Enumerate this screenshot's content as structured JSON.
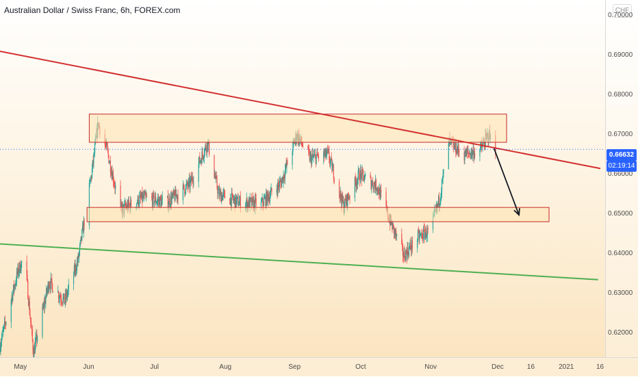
{
  "header": {
    "title": "Australian Dollar / Swiss Franc, 6h, FOREX.com",
    "currency": "CHF"
  },
  "price_axis": {
    "ticks": [
      "0.70000",
      "0.69000",
      "0.68000",
      "0.67000",
      "0.66000",
      "0.65000",
      "0.64000",
      "0.63000",
      "0.62000"
    ],
    "last_price": "0.66632",
    "countdown": "02:19:14"
  },
  "time_axis": {
    "ticks": [
      "May",
      "Jun",
      "Jul",
      "Aug",
      "Sep",
      "Oct",
      "Nov",
      "Dec",
      "16",
      "2021",
      "16"
    ]
  },
  "colors": {
    "up": "#26a69a",
    "down": "#ef5350",
    "resistance_line": "#d32f2f",
    "support_line": "#4caf50",
    "zone_fill": "#fde3b0",
    "zone_border": "#c62828",
    "price_tag": "#2962ff"
  },
  "chart_data": {
    "type": "candlestick",
    "symbol": "AUDCHF",
    "timeframe": "6h",
    "ylim": [
      0.6103,
      0.7056
    ],
    "x_labels": [
      "May",
      "Jun",
      "Jul",
      "Aug",
      "Sep",
      "Oct",
      "Nov",
      "Dec",
      "16",
      "2021",
      "16"
    ],
    "price_path": [
      {
        "date": "2020-04-22",
        "price": 0.617
      },
      {
        "date": "2020-04-30",
        "price": 0.6355
      },
      {
        "date": "2020-05-03",
        "price": 0.6395
      },
      {
        "date": "2020-05-07",
        "price": 0.615
      },
      {
        "date": "2020-05-14",
        "price": 0.633
      },
      {
        "date": "2020-05-21",
        "price": 0.628
      },
      {
        "date": "2020-05-27",
        "price": 0.6385
      },
      {
        "date": "2020-06-02",
        "price": 0.66
      },
      {
        "date": "2020-06-05",
        "price": 0.673
      },
      {
        "date": "2020-06-09",
        "price": 0.666
      },
      {
        "date": "2020-06-15",
        "price": 0.651
      },
      {
        "date": "2020-06-25",
        "price": 0.654
      },
      {
        "date": "2020-07-06",
        "price": 0.653
      },
      {
        "date": "2020-07-16",
        "price": 0.6575
      },
      {
        "date": "2020-07-24",
        "price": 0.668
      },
      {
        "date": "2020-07-29",
        "price": 0.655
      },
      {
        "date": "2020-08-07",
        "price": 0.653
      },
      {
        "date": "2020-08-17",
        "price": 0.6525
      },
      {
        "date": "2020-08-26",
        "price": 0.658
      },
      {
        "date": "2020-09-02",
        "price": 0.67
      },
      {
        "date": "2020-09-08",
        "price": 0.664
      },
      {
        "date": "2020-09-16",
        "price": 0.665
      },
      {
        "date": "2020-09-23",
        "price": 0.652
      },
      {
        "date": "2020-09-30",
        "price": 0.66
      },
      {
        "date": "2020-10-08",
        "price": 0.657
      },
      {
        "date": "2020-10-14",
        "price": 0.648
      },
      {
        "date": "2020-10-20",
        "price": 0.6395
      },
      {
        "date": "2020-10-26",
        "price": 0.644
      },
      {
        "date": "2020-11-01",
        "price": 0.646
      },
      {
        "date": "2020-11-05",
        "price": 0.654
      },
      {
        "date": "2020-11-09",
        "price": 0.668
      },
      {
        "date": "2020-11-16",
        "price": 0.665
      },
      {
        "date": "2020-11-23",
        "price": 0.666
      },
      {
        "date": "2020-11-27",
        "price": 0.67
      },
      {
        "date": "2020-11-30",
        "price": 0.6663
      }
    ],
    "last_price": 0.66632,
    "annotations": {
      "resistance_trendline": {
        "start": {
          "date": "2020-04-22",
          "price": 0.691
        },
        "end": {
          "date": "2021-01-16",
          "price": 0.6615
        }
      },
      "support_trendline": {
        "start": {
          "date": "2020-04-22",
          "price": 0.6425
        },
        "end": {
          "date": "2021-01-15",
          "price": 0.6335
        }
      },
      "upper_zone": {
        "x_start": "2020-06-01",
        "x_end": "2020-12-05",
        "y_low": 0.6681,
        "y_high": 0.6752
      },
      "lower_zone": {
        "x_start": "2020-05-31",
        "x_end": "2020-12-24",
        "y_low": 0.6481,
        "y_high": 0.6517
      },
      "projection_arrow": {
        "start": {
          "date": "2020-11-30",
          "price": 0.6665
        },
        "end": {
          "date": "2020-12-09",
          "price": 0.6498
        }
      }
    }
  }
}
